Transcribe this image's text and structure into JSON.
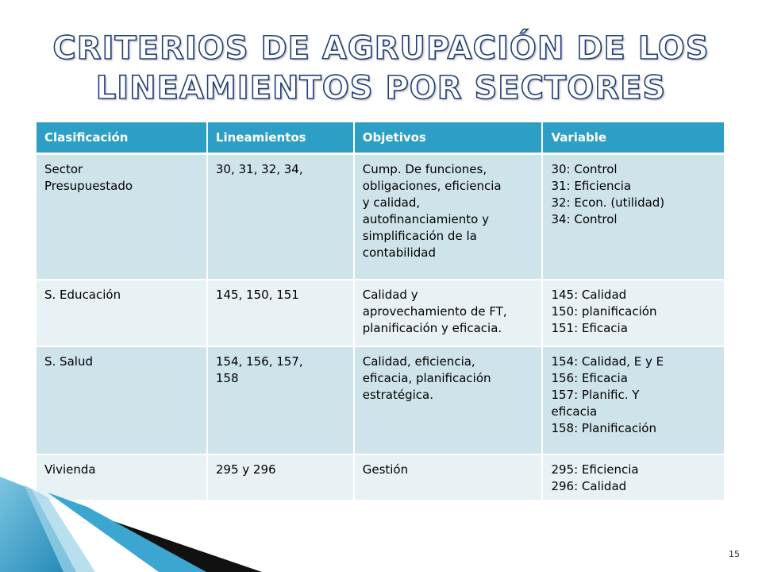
{
  "title": {
    "line1": "Criterios de agrupación de los",
    "line2": "lineamientos por sectores"
  },
  "table": {
    "headers": [
      "Clasificación",
      "Lineamientos",
      "Objetivos",
      "Variable"
    ],
    "rows": [
      {
        "clasificacion": [
          "Sector",
          "Presupuestado"
        ],
        "lineamientos": [
          "30, 31, 32, 34,"
        ],
        "objetivos": [
          "Cump. De funciones,",
          "obligaciones, eficiencia",
          "y calidad,",
          "autofinanciamiento y",
          "simplificación de la",
          "contabilidad"
        ],
        "variable": [
          "30: Control",
          "31: Eficiencia",
          "32: Econ. (utilidad)",
          "34: Control"
        ]
      },
      {
        "clasificacion": [
          "S. Educación"
        ],
        "lineamientos": [
          "145, 150, 151"
        ],
        "objetivos": [
          "Calidad y",
          "aprovechamiento de FT,",
          "planificación y eficacia."
        ],
        "variable": [
          "145: Calidad",
          "150: planificación",
          "151: Eficacia"
        ]
      },
      {
        "clasificacion": [
          "S. Salud"
        ],
        "lineamientos": [
          "154, 156, 157,",
          "158"
        ],
        "objetivos": [
          "Calidad, eficiencia,",
          "eficacia, planificación",
          "estratégica."
        ],
        "variable": [
          "154: Calidad, E y E",
          "156: Eficacia",
          "157: Planific. Y",
          "eficacia",
          "158: Planificación"
        ]
      },
      {
        "clasificacion": [
          "Vivienda"
        ],
        "lineamientos": [
          "295 y 296"
        ],
        "objetivos": [
          "Gestión"
        ],
        "variable": [
          "295: Eficiencia",
          "296: Calidad"
        ]
      }
    ]
  },
  "page_number": "15",
  "colors": {
    "header_bg": "#2e9fc4",
    "row_dark": "#cfe3ea",
    "row_light": "#e8f2f5",
    "title_stroke": "#1f3d78"
  }
}
